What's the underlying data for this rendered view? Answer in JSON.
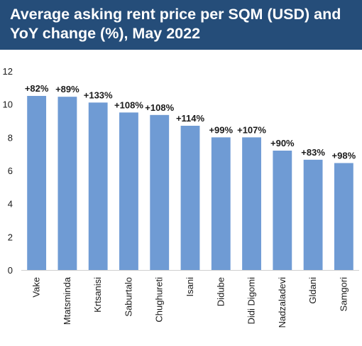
{
  "title": {
    "line1": "Average asking rent price per SQM (USD) and",
    "line2": "YoY change (%), May 2022"
  },
  "colors": {
    "banner": "#254d79",
    "bar": "#6f9bd4",
    "text": "#1a1a1a",
    "axis": "#cfcfcf"
  },
  "chart_data": {
    "type": "bar",
    "title": "Average asking rent price per SQM (USD) and YoY change (%), May 2022",
    "xlabel": "",
    "ylabel": "",
    "ylim": [
      0,
      12
    ],
    "yticks": [
      0,
      2,
      4,
      6,
      8,
      10,
      12
    ],
    "grid": false,
    "legend": "none",
    "categories": [
      "Vake",
      "Mtatsminda",
      "Krtsanisi",
      "Saburtalo",
      "Chughureti",
      "Isani",
      "Didube",
      "Didi Digomi",
      "Nadzaladevi",
      "Gldani",
      "Samgori"
    ],
    "values": [
      10.5,
      10.45,
      10.1,
      9.5,
      9.35,
      8.7,
      8.0,
      8.0,
      7.2,
      6.65,
      6.45
    ],
    "data_labels": [
      "+82%",
      "+89%",
      "+133%",
      "+108%",
      "+108%",
      "+114%",
      "+99%",
      "+107%",
      "+90%",
      "+83%",
      "+98%"
    ]
  }
}
